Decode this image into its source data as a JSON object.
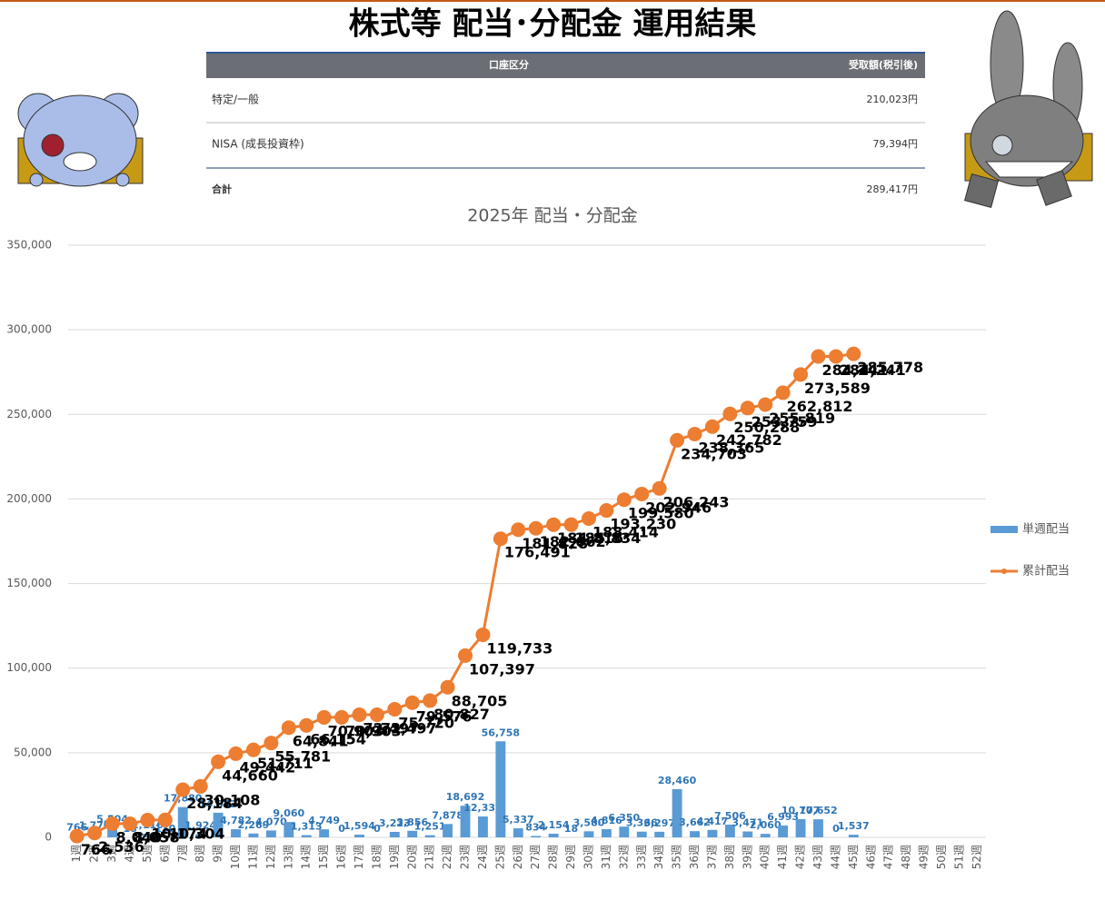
{
  "header": {
    "title": "株式等 配当･分配金 運用結果"
  },
  "table": {
    "columns": [
      "口座区分",
      "受取額(税引後)"
    ],
    "rows": [
      [
        "特定/一般",
        "210,023円"
      ],
      [
        "NISA (成長投資枠)",
        "79,394円"
      ],
      [
        "合計",
        "289,417円"
      ]
    ]
  },
  "chart_data": {
    "type": "combo",
    "title": "2025年 配当・分配金",
    "categories": [
      "1週",
      "2週",
      "3週",
      "4週",
      "5週",
      "6週",
      "7週",
      "8週",
      "9週",
      "10週",
      "11週",
      "12週",
      "13週",
      "14週",
      "15週",
      "16週",
      "17週",
      "18週",
      "19週",
      "20週",
      "21週",
      "22週",
      "23週",
      "24週",
      "25週",
      "26週",
      "27週",
      "28週",
      "29週",
      "30週",
      "31週",
      "32週",
      "33週",
      "34週",
      "35週",
      "36週",
      "37週",
      "38週",
      "39週",
      "40週",
      "41週",
      "42週",
      "43週",
      "44週",
      "45週",
      "46週",
      "47週",
      "48週",
      "49週",
      "50週",
      "51週",
      "52週"
    ],
    "series": [
      {
        "name": "単週配当",
        "type": "bar",
        "color": "#5b9bd5",
        "values": [
          766,
          1770,
          5504,
          18,
          2116,
          130,
          17880,
          1924,
          14552,
          4782,
          2269,
          4070,
          9060,
          1313,
          4749,
          0,
          1594,
          0,
          3223,
          3856,
          1251,
          7878,
          18692,
          12336,
          56758,
          5337,
          834,
          2154,
          18,
          3580,
          4816,
          6350,
          3366,
          3297,
          28460,
          3662,
          4417,
          7506,
          3471,
          2060,
          6993,
          10777,
          10652,
          0,
          1537,
          null,
          null,
          null,
          null,
          null,
          null,
          null
        ],
        "value_labels": [
          "766",
          "1,770",
          "5,504",
          "18",
          "2,116",
          "130",
          "17,880",
          "1,924",
          "14,552",
          "4,782",
          "2,269",
          "4,070",
          "9,060",
          "1,313",
          "4,749",
          "0",
          "1,594",
          "0",
          "3,223",
          "3,856",
          "1,251",
          "7,878",
          "18,692",
          "12,336",
          "56,758",
          "5,337",
          "834",
          "2,154",
          "18",
          "3,580",
          "4,816",
          "6,350",
          "3,366",
          "3,297",
          "28,460",
          "3,662",
          "4,417",
          "7,506",
          "3,471",
          "2,060",
          "6,993",
          "10,777",
          "10,652",
          "0",
          "1,537",
          null,
          null,
          null,
          null,
          null,
          null,
          null
        ]
      },
      {
        "name": "累計配当",
        "type": "line",
        "color": "#ed7d31",
        "values": [
          766,
          2536,
          8040,
          8058,
          10174,
          10304,
          28184,
          30108,
          44660,
          49442,
          51711,
          55781,
          64841,
          66154,
          70903,
          70903,
          72497,
          72497,
          75720,
          79576,
          80827,
          88705,
          107397,
          119733,
          176491,
          181828,
          182662,
          184816,
          184834,
          188414,
          193230,
          199580,
          202946,
          206243,
          234703,
          238365,
          242782,
          250288,
          253759,
          255819,
          262812,
          273589,
          284241,
          284241,
          285778,
          null,
          null,
          null,
          null,
          null,
          null,
          null
        ],
        "value_labels": [
          "766",
          "2,536",
          "8,040",
          "8,058",
          "10,174",
          "10,304",
          "28,184",
          "30,108",
          "44,660",
          "49,442",
          "51,711",
          "55,781",
          "64,841",
          "66,154",
          "70,903",
          "70,903",
          "72,497",
          "72,497",
          "75,720",
          "79,576",
          "80,827",
          "88,705",
          "107,397",
          "119,733",
          "176,491",
          "181,828",
          "182,662",
          "184,816",
          "184,834",
          "188,414",
          "193,230",
          "199,580",
          "202,946",
          "206,243",
          "234,703",
          "238,365",
          "242,782",
          "250,288",
          "253,759",
          "255,819",
          "262,812",
          "273,589",
          "284,241",
          "284,241",
          "285,778",
          null,
          null,
          null,
          null,
          null,
          null,
          null
        ]
      }
    ],
    "ylim": [
      0,
      350000
    ],
    "yticks": [
      0,
      {
        "value": 50000,
        "label": "50,000"
      },
      {
        "value": 100000,
        "label": "100,000"
      },
      {
        "value": 150000,
        "label": "150,000"
      },
      {
        "value": 200000,
        "label": "200,000"
      },
      {
        "value": 250000,
        "label": "250,000"
      },
      {
        "value": 300000,
        "label": "300,000"
      },
      {
        "value": 350000,
        "label": "350,000"
      }
    ],
    "grid": true,
    "legend": "right"
  }
}
